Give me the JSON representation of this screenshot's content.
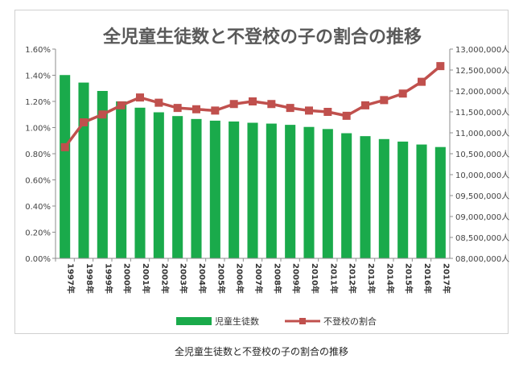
{
  "caption": "全児童生徒数と不登校の子の割合の推移",
  "chart_data": {
    "type": "bar+line",
    "title": "全児童生徒数と不登校の子の割合の推移",
    "categories": [
      "1997年",
      "1998年",
      "1999年",
      "2000年",
      "2001年",
      "2002年",
      "2003年",
      "2004年",
      "2005年",
      "2006年",
      "2007年",
      "2008年",
      "2009年",
      "2010年",
      "2011年",
      "2012年",
      "2013年",
      "2014年",
      "2015年",
      "2016年",
      "2017年"
    ],
    "series": [
      {
        "name": "児童生徒数",
        "type": "bar",
        "axis": "right",
        "color": "#1aaa4b",
        "values": [
          12380000,
          12200000,
          12000000,
          11750000,
          11600000,
          11490000,
          11400000,
          11330000,
          11290000,
          11270000,
          11240000,
          11220000,
          11190000,
          11140000,
          11090000,
          10990000,
          10920000,
          10850000,
          10790000,
          10720000,
          10660000
        ]
      },
      {
        "name": "不登校の割合",
        "type": "line",
        "axis": "left",
        "color": "#c0504d",
        "values": [
          0.0085,
          0.0104,
          0.011,
          0.0117,
          0.0123,
          0.0119,
          0.0115,
          0.0114,
          0.0113,
          0.0118,
          0.012,
          0.0118,
          0.0115,
          0.0113,
          0.0112,
          0.0109,
          0.0117,
          0.0121,
          0.0126,
          0.0135,
          0.0147
        ]
      }
    ],
    "y_left": {
      "ylim": [
        0,
        0.016
      ],
      "ticks": [
        0,
        0.002,
        0.004,
        0.006,
        0.008,
        0.01,
        0.012,
        0.014,
        0.016
      ],
      "tick_labels": [
        "0.00%",
        "0.20%",
        "0.40%",
        "0.60%",
        "0.80%",
        "1.00%",
        "1.20%",
        "1.40%",
        "1.60%"
      ]
    },
    "y_right": {
      "ylim": [
        8000000,
        13000000
      ],
      "ticks": [
        8000000,
        8500000,
        9000000,
        9500000,
        10000000,
        10500000,
        11000000,
        11500000,
        12000000,
        12500000,
        13000000
      ],
      "tick_labels": [
        "08,000,000人",
        "08,500,000人",
        "09,000,000人",
        "09,500,000人",
        "10,000,000人",
        "10,500,000人",
        "11,000,000人",
        "11,500,000人",
        "12,000,000人",
        "12,500,000人",
        "13,000,000人"
      ]
    },
    "grid": false,
    "legend_position": "bottom"
  }
}
